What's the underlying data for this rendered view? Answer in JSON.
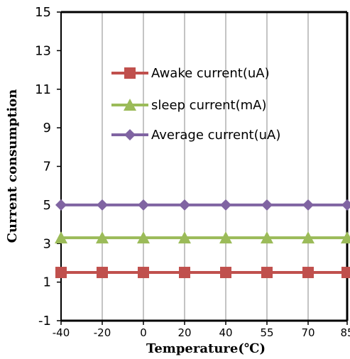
{
  "chart_data": {
    "type": "line",
    "title": "",
    "xlabel": "Temperature(℃)",
    "ylabel": "Current consumption",
    "categories": [
      "-40",
      "-20",
      "0",
      "20",
      "40",
      "55",
      "70",
      "85"
    ],
    "ylim": [
      -1,
      15
    ],
    "yticks": [
      "-1",
      "1",
      "3",
      "5",
      "7",
      "9",
      "11",
      "13",
      "15"
    ],
    "grid": "vertical",
    "legend_position": "upper-right inside",
    "series": [
      {
        "name": "Awake current(uA)",
        "values": [
          1.5,
          1.5,
          1.5,
          1.5,
          1.5,
          1.5,
          1.5,
          1.5
        ],
        "color": "#C0504D",
        "marker": "square"
      },
      {
        "name": "sleep current(mA)",
        "values": [
          3.3,
          3.3,
          3.3,
          3.3,
          3.3,
          3.3,
          3.3,
          3.3
        ],
        "color": "#9BBB59",
        "marker": "triangle"
      },
      {
        "name": "Average current(uA)",
        "values": [
          5,
          5,
          5,
          5,
          5,
          5,
          5,
          5
        ],
        "color": "#8064A2",
        "marker": "diamond"
      }
    ]
  }
}
